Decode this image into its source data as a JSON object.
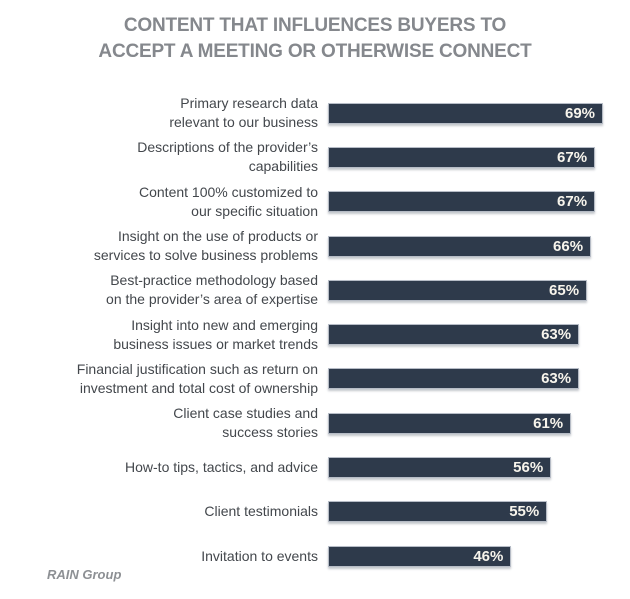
{
  "title": "CONTENT THAT INFLUENCES BUYERS TO\nACCEPT A MEETING OR OTHERWISE CONNECT",
  "source": "RAIN Group",
  "chart_data": {
    "type": "bar",
    "orientation": "horizontal",
    "title": "CONTENT THAT INFLUENCES BUYERS TO ACCEPT A MEETING OR OTHERWISE CONNECT",
    "categories": [
      "Primary research data\nrelevant to our business",
      "Descriptions of the provider’s\ncapabilities",
      "Content 100% customized to\nour specific situation",
      "Insight on the use of products or\nservices to solve business problems",
      "Best-practice methodology based\non the provider’s area of expertise",
      "Insight into new and emerging\nbusiness issues or market trends",
      "Financial justification such as return on\ninvestment and total cost of ownership",
      "Client case studies and\nsuccess stories",
      "How-to tips, tactics, and advice",
      "Client testimonials",
      "Invitation to events"
    ],
    "values": [
      69,
      67,
      67,
      66,
      65,
      63,
      63,
      61,
      56,
      55,
      46
    ],
    "value_suffix": "%",
    "xlim": [
      0,
      71
    ],
    "grid": false,
    "legend": false,
    "bar_color": "#2e3a4b",
    "bar_border_color": "#b6bcc6",
    "data_label_color": "#f7f4ec",
    "category_label_color": "#43474c",
    "title_color": "#85888d",
    "source_label": "RAIN Group"
  }
}
